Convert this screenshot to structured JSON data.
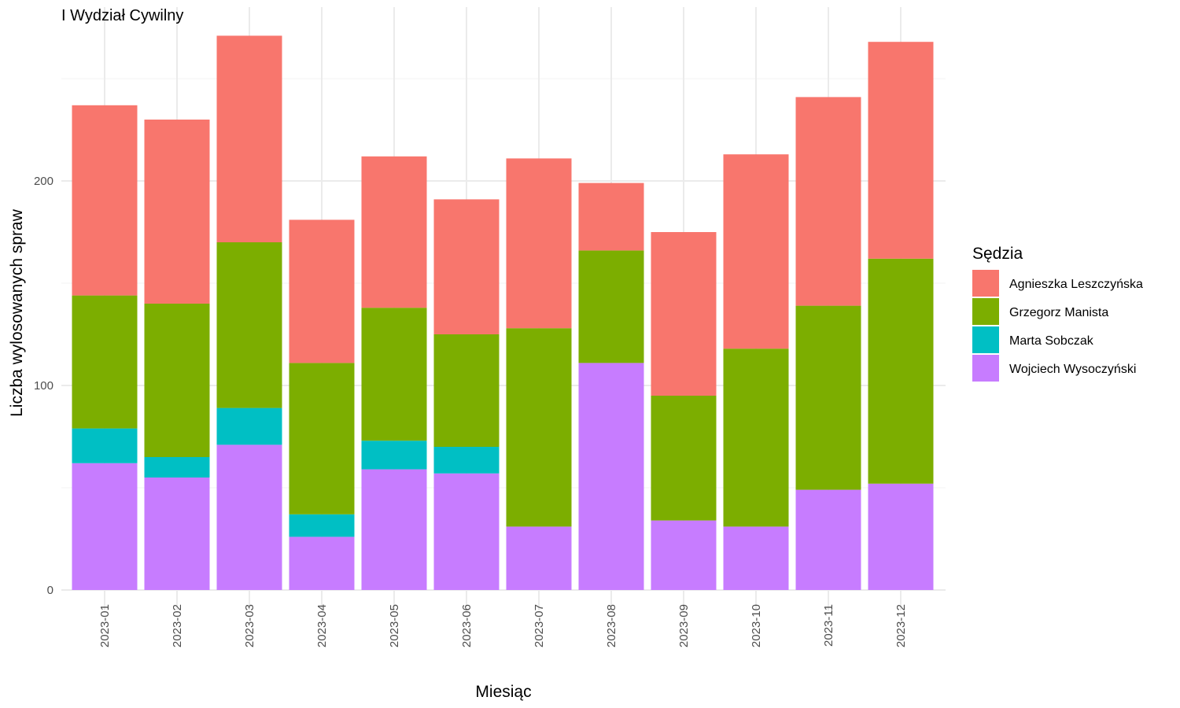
{
  "chart_data": {
    "type": "bar",
    "stacked": true,
    "title": "I Wydział Cywilny",
    "xlabel": "Miesiąc",
    "ylabel": "Liczba wylosowanych spraw",
    "ylim": [
      0,
      285
    ],
    "yticks": [
      0,
      100,
      200
    ],
    "grid": true,
    "legend": {
      "title": "Sędzia",
      "position": "right"
    },
    "categories": [
      "2023-01",
      "2023-02",
      "2023-03",
      "2023-04",
      "2023-05",
      "2023-06",
      "2023-07",
      "2023-08",
      "2023-09",
      "2023-10",
      "2023-11",
      "2023-12"
    ],
    "series": [
      {
        "name": "Wojciech Wysoczyński",
        "color": "#C77CFF",
        "values": [
          62,
          55,
          71,
          26,
          59,
          57,
          31,
          111,
          34,
          31,
          49,
          52
        ]
      },
      {
        "name": "Marta Sobczak",
        "color": "#00BFC4",
        "values": [
          17,
          10,
          18,
          11,
          14,
          13,
          0,
          0,
          0,
          0,
          0,
          0
        ]
      },
      {
        "name": "Grzegorz Manista",
        "color": "#7CAE00",
        "values": [
          65,
          75,
          81,
          74,
          65,
          55,
          97,
          55,
          61,
          87,
          90,
          110
        ]
      },
      {
        "name": "Agnieszka Leszczyńska",
        "color": "#F8766D",
        "values": [
          93,
          90,
          101,
          70,
          74,
          66,
          83,
          33,
          80,
          95,
          102,
          106
        ]
      }
    ],
    "legend_order": [
      "Agnieszka Leszczyńska",
      "Grzegorz Manista",
      "Marta Sobczak",
      "Wojciech Wysoczyński"
    ]
  }
}
